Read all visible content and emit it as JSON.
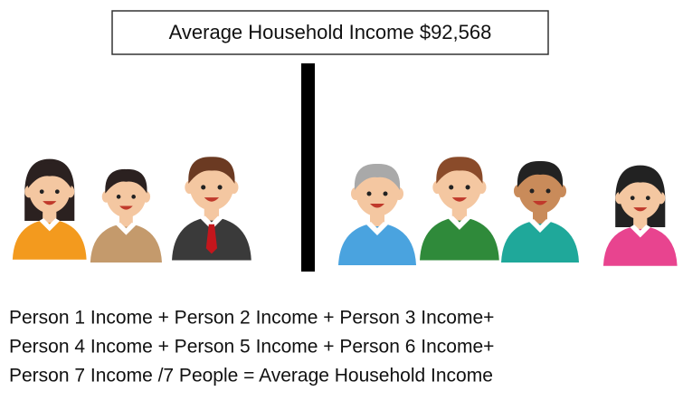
{
  "box": {
    "label": "Average Household Income $92,568"
  },
  "formula": {
    "lines": [
      "Person 1 Income + Person 2 Income + Person 3 Income+",
      "Person 4 Income + Person 5 Income + Person 6 Income+",
      "Person 7 Income /7 People = Average Household Income"
    ]
  }
}
